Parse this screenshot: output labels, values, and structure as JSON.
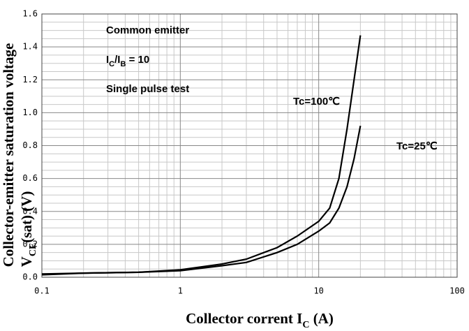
{
  "chart_data": {
    "type": "line",
    "x_label": [
      "Collector corrent I",
      "C",
      " (A)"
    ],
    "y_label": "Collector-emitter saturation voltage",
    "y_label_2": [
      "V",
      "CE",
      "(sat) (V)"
    ],
    "annotations": {
      "line1": "Common emitter",
      "line2": [
        "I",
        "C",
        "/I",
        "B",
        " = 10"
      ],
      "line3": "Single pulse test"
    },
    "xscale": "log",
    "xlim": [
      0.1,
      100
    ],
    "xticks": [
      0.1,
      1,
      10,
      100
    ],
    "ylim": [
      0,
      1.6
    ],
    "yticks": [
      {
        "value": 0,
        "label": "0.0"
      },
      0.2,
      0.4,
      0.6,
      0.8,
      {
        "value": 1,
        "label": "1.0"
      },
      1.2,
      1.4,
      1.6
    ],
    "grid": true,
    "series": [
      {
        "name": "Tc=100℃",
        "color": "#000000",
        "x": [
          0.1,
          0.2,
          0.5,
          1,
          2,
          3,
          5,
          7,
          10,
          12,
          14,
          16,
          18,
          20
        ],
        "values": [
          0.015,
          0.025,
          0.03,
          0.045,
          0.08,
          0.11,
          0.18,
          0.25,
          0.34,
          0.42,
          0.6,
          0.9,
          1.2,
          1.47
        ]
      },
      {
        "name": "Tc=25℃",
        "color": "#000000",
        "x": [
          0.1,
          0.2,
          0.5,
          1,
          2,
          3,
          5,
          7,
          10,
          12,
          14,
          16,
          18,
          20
        ],
        "values": [
          0.02,
          0.025,
          0.03,
          0.04,
          0.07,
          0.09,
          0.15,
          0.2,
          0.28,
          0.33,
          0.42,
          0.55,
          0.72,
          0.92
        ]
      }
    ]
  }
}
